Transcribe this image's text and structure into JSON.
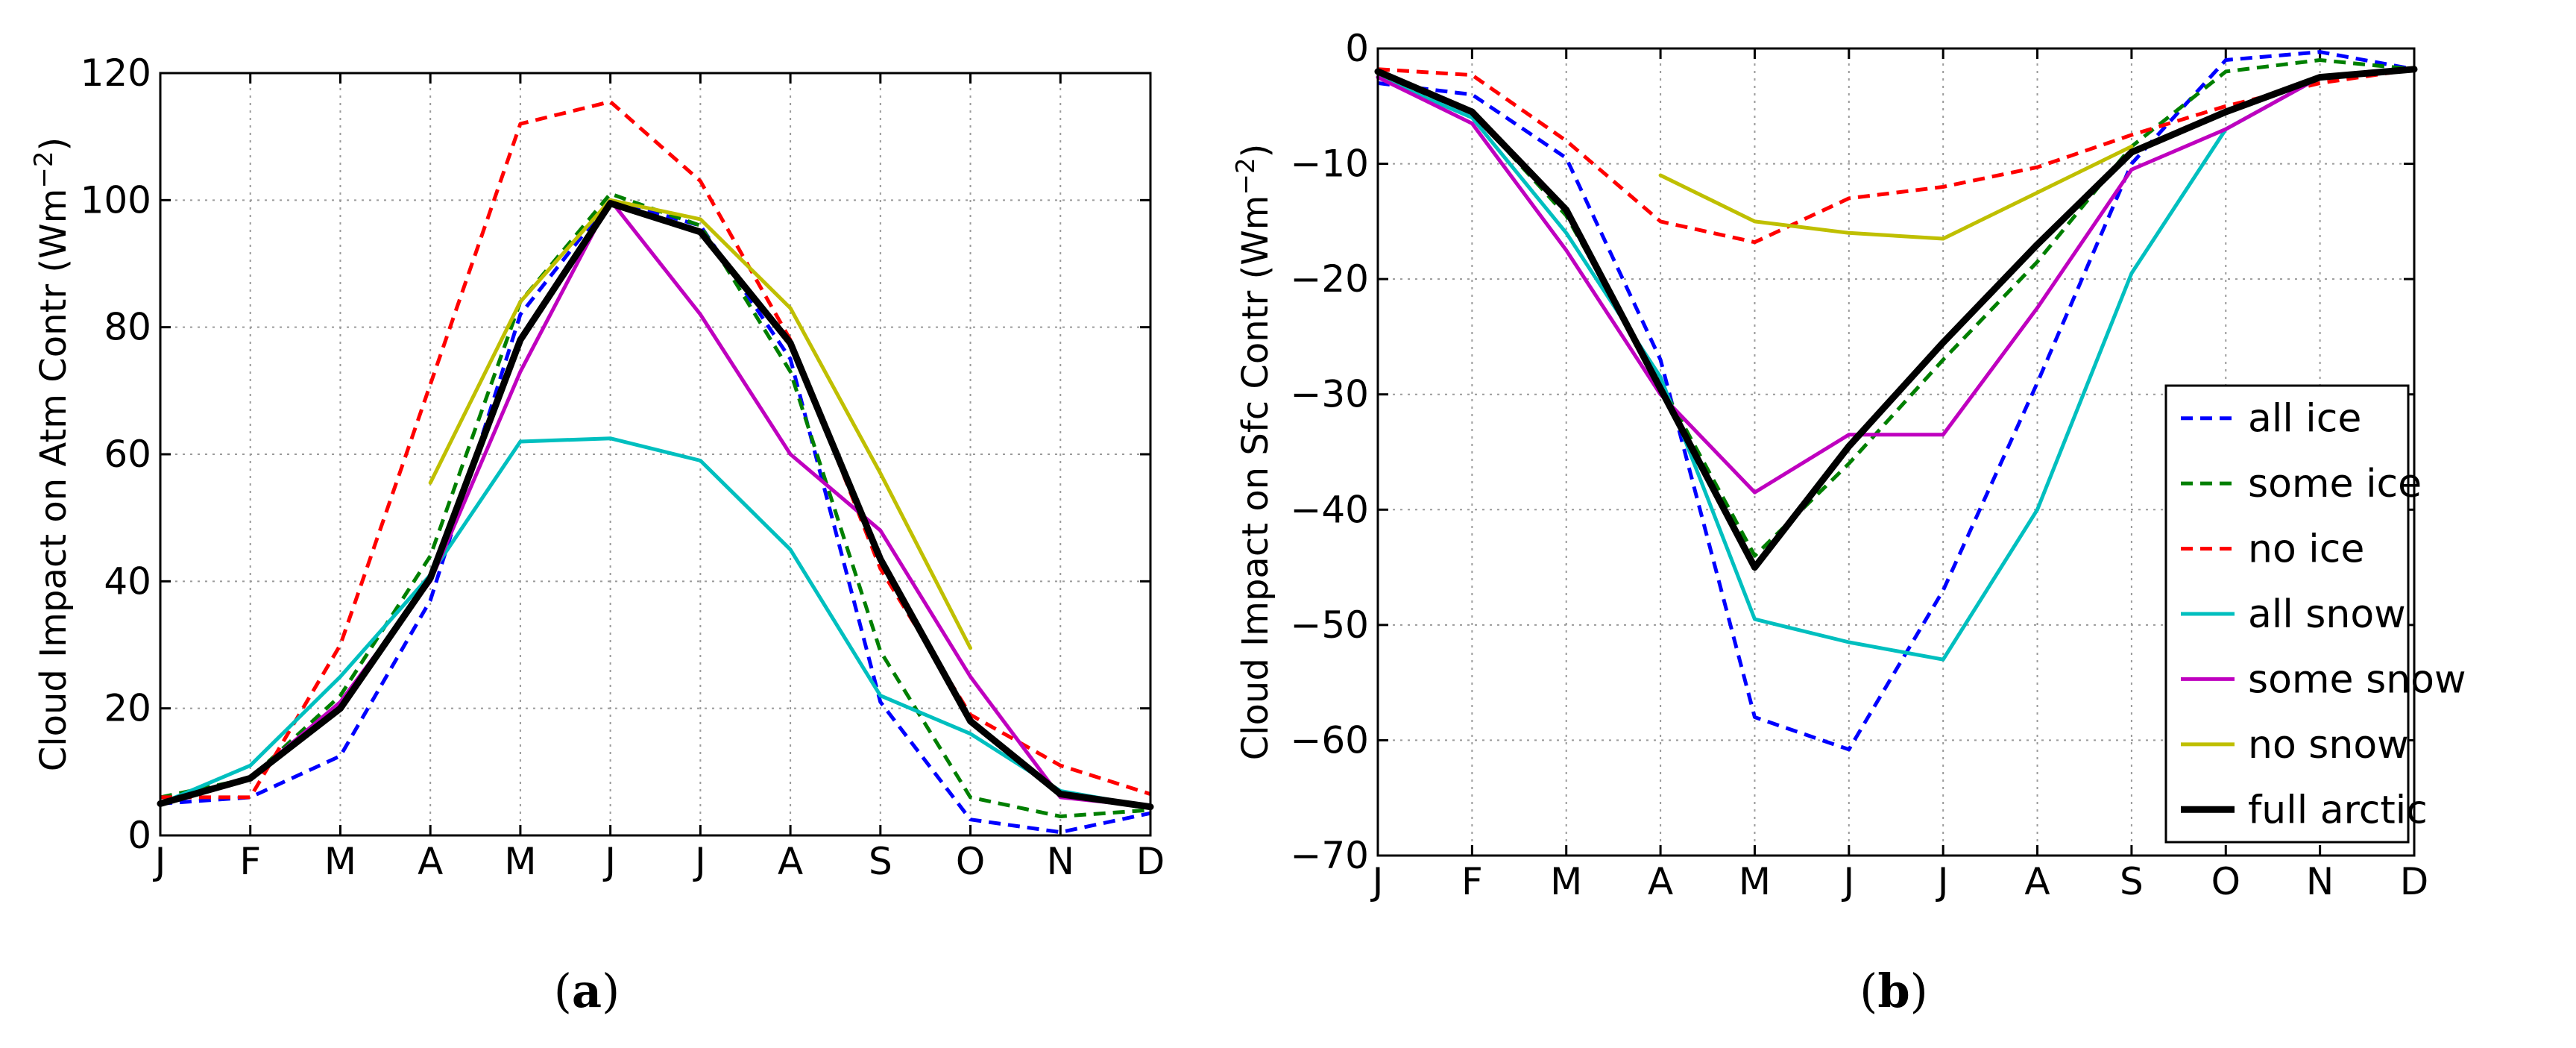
{
  "chart_data": [
    {
      "type": "line",
      "caption": "a",
      "ylabel": "Cloud Impact on Atm Contr (Wm",
      "ylabel_sup": "−2",
      "ylabel_close": ")",
      "categories": [
        "J",
        "F",
        "M",
        "A",
        "M",
        "J",
        "J",
        "A",
        "S",
        "O",
        "N",
        "D"
      ],
      "ylim": [
        0,
        120
      ],
      "yticks": [
        0,
        20,
        40,
        60,
        80,
        100,
        120
      ],
      "ytick_labels": [
        "0",
        "20",
        "40",
        "60",
        "80",
        "100",
        "120"
      ],
      "grid": true,
      "series": [
        {
          "name": "all ice",
          "color": "#0000ff",
          "style": "dashed",
          "values": [
            5,
            6,
            12.5,
            37,
            82,
            100,
            96,
            75,
            21,
            2.5,
            0.5,
            3.5
          ]
        },
        {
          "name": "some ice",
          "color": "#007f00",
          "style": "dashed",
          "values": [
            6,
            9,
            22,
            44,
            84,
            101,
            96,
            73,
            29,
            6,
            3,
            4
          ]
        },
        {
          "name": "no ice",
          "color": "#ff0000",
          "style": "dashed",
          "values": [
            6,
            6,
            30,
            71,
            112,
            115.5,
            103,
            78,
            42,
            19,
            11,
            6.5
          ]
        },
        {
          "name": "all snow",
          "color": "#00bfbf",
          "style": "solid",
          "values": [
            5,
            11,
            25,
            41,
            62,
            62.5,
            59,
            45,
            22,
            16,
            7,
            4.5
          ]
        },
        {
          "name": "some snow",
          "color": "#bf00bf",
          "style": "solid",
          "values": [
            5,
            9,
            21,
            40,
            73,
            100,
            82,
            60,
            48,
            25,
            6,
            4.5
          ]
        },
        {
          "name": "no snow",
          "color": "#bfbf00",
          "style": "solid",
          "values": [
            null,
            null,
            null,
            55.5,
            84,
            100,
            97,
            83,
            57,
            29.5,
            null,
            null
          ]
        },
        {
          "name": "full arctic",
          "color": "#000000",
          "style": "solid",
          "width": "thick",
          "values": [
            5,
            9,
            20,
            40.5,
            78,
            99.5,
            95,
            77.5,
            43.5,
            18,
            6.5,
            4.5
          ]
        }
      ]
    },
    {
      "type": "line",
      "caption": "b",
      "ylabel": "Cloud Impact on Sfc Contr (Wm",
      "ylabel_sup": "−2",
      "ylabel_close": ")",
      "categories": [
        "J",
        "F",
        "M",
        "A",
        "M",
        "J",
        "J",
        "A",
        "S",
        "O",
        "N",
        "D"
      ],
      "ylim": [
        -70,
        0
      ],
      "yticks": [
        -70,
        -60,
        -50,
        -40,
        -30,
        -20,
        -10,
        0
      ],
      "ytick_labels": [
        "−70",
        "−60",
        "−50",
        "−40",
        "−30",
        "−20",
        "−10",
        "0"
      ],
      "grid": true,
      "legend_position": "right",
      "series": [
        {
          "name": "all ice",
          "color": "#0000ff",
          "style": "dashed",
          "values": [
            -3,
            -4,
            -9.5,
            -27,
            -58,
            -60.8,
            -47,
            -29,
            -10,
            -1,
            -0.3,
            -1.8
          ]
        },
        {
          "name": "some ice",
          "color": "#007f00",
          "style": "dashed",
          "values": [
            -2.5,
            -5.5,
            -14.5,
            -29,
            -44,
            -36,
            -27,
            -18.5,
            -8.5,
            -2,
            -1,
            -1.8
          ]
        },
        {
          "name": "no ice",
          "color": "#ff0000",
          "style": "dashed",
          "values": [
            -1.8,
            -2.3,
            -8,
            -15,
            -16.8,
            -13,
            -12,
            -10.3,
            -7.5,
            -5,
            -3,
            -1.8
          ]
        },
        {
          "name": "all snow",
          "color": "#00bfbf",
          "style": "solid",
          "values": [
            -2.5,
            -6,
            -16,
            -28.5,
            -49.5,
            -51.5,
            -53,
            -40,
            -19.5,
            -7,
            -2.5,
            -1.8
          ]
        },
        {
          "name": "some snow",
          "color": "#bf00bf",
          "style": "solid",
          "values": [
            -2.5,
            -6.5,
            -17.5,
            -30,
            -38.5,
            -33.5,
            -33.5,
            -22.5,
            -10.5,
            -7,
            -2.5,
            -1.8
          ]
        },
        {
          "name": "no snow",
          "color": "#bfbf00",
          "style": "solid",
          "values": [
            null,
            null,
            null,
            -11,
            -15,
            -16,
            -16.5,
            -12.5,
            -8.5,
            null,
            null,
            null
          ]
        },
        {
          "name": "full arctic",
          "color": "#000000",
          "style": "solid",
          "width": "thick",
          "values": [
            -2,
            -5.5,
            -14,
            -29.5,
            -45,
            -34.5,
            -25.5,
            -17,
            -9,
            -5.5,
            -2.5,
            -1.8
          ]
        }
      ]
    }
  ]
}
